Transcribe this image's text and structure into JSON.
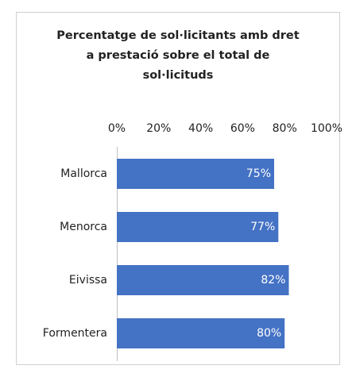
{
  "chart_data": {
    "type": "bar",
    "orientation": "horizontal",
    "title": [
      "Percentatge de sol·licitants amb dret",
      "a prestació sobre el total de",
      "sol·licituds"
    ],
    "categories": [
      "Mallorca",
      "Menorca",
      "Eivissa",
      "Formentera"
    ],
    "values": [
      75,
      77,
      82,
      80
    ],
    "value_labels": [
      "75%",
      "77%",
      "82%",
      "80%"
    ],
    "color": "#4472c4",
    "xlim": [
      0,
      100
    ],
    "xticks": [
      {
        "value": 0,
        "label": "0%"
      },
      {
        "value": 20,
        "label": "20%"
      },
      {
        "value": 40,
        "label": "40%"
      },
      {
        "value": 60,
        "label": "60%"
      },
      {
        "value": 80,
        "label": "80%"
      },
      {
        "value": 100,
        "label": "100%"
      }
    ],
    "grid": false
  }
}
